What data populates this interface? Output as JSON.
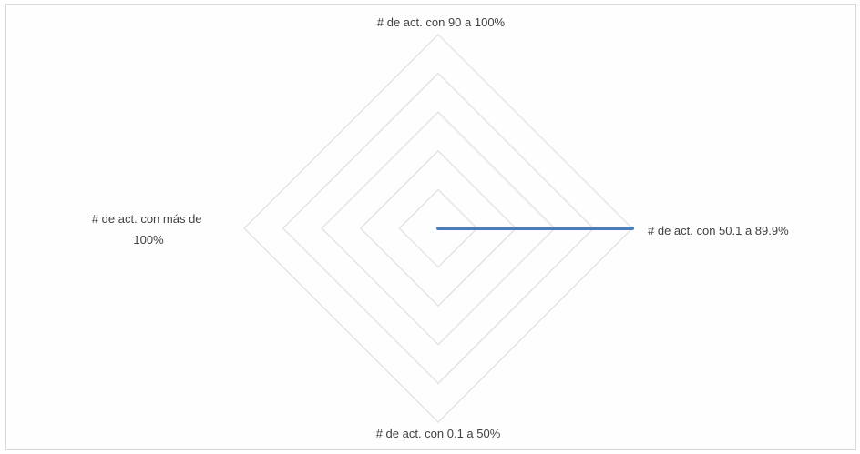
{
  "chart_data": {
    "type": "radar",
    "title": "",
    "axes": [
      "# de act. con 90 a 100%",
      "# de act. con 50.1 a 89.9%",
      "# de act. con 0.1 a 50%",
      "# de act. con más de 100%"
    ],
    "series": [
      {
        "values": [
          0,
          1,
          0,
          0
        ],
        "color": "#4a7ebb"
      }
    ],
    "rlim": [
      0,
      1
    ],
    "rings": 5,
    "grid": true,
    "legend": "none"
  }
}
